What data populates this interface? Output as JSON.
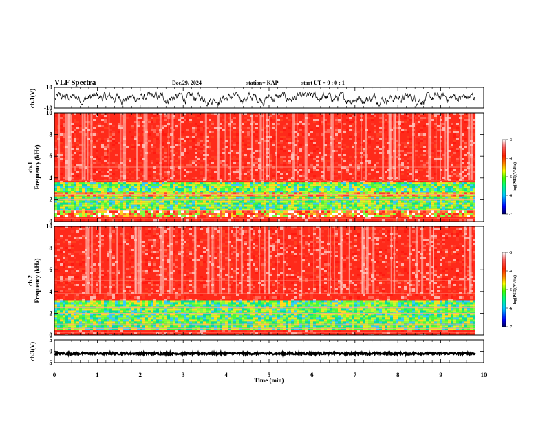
{
  "header": {
    "title": "VLF Spectra",
    "date": "Dec.29, 2024",
    "station": "station= KAP",
    "start": "start  UT  =   9 : 0  : 1"
  },
  "colors": {
    "background": "#ffffff",
    "trace": "#000000",
    "spectrogram_base": "#ff2a1a",
    "colormap": [
      "#000060",
      "#0000ff",
      "#00c8ff",
      "#00ff80",
      "#40ff00",
      "#ffff00",
      "#ff8000",
      "#ff2000",
      "#ff6060",
      "#ffffff"
    ]
  },
  "chart_data": [
    {
      "type": "line",
      "name": "ch1-waveform",
      "ylabel": "ch.1(V)",
      "ylim": [
        -10,
        10
      ],
      "y_ticks": [
        "10",
        "-10"
      ],
      "xlim": [
        0,
        10
      ],
      "description_visible": "noisy voltage trace fluctuating roughly between -8 and 5 V"
    },
    {
      "type": "heatmap",
      "name": "ch1-spectrogram",
      "ylabel": "Frequency  (kHz)",
      "ylabel_prefix": "ch.1",
      "ylim": [
        0,
        10
      ],
      "y_ticks": [
        "0",
        "2",
        "4",
        "6",
        "8",
        "10"
      ],
      "xlim": [
        0,
        9.8
      ],
      "colorbar": {
        "label": "log(PSD)(V²/Hz)",
        "range": [
          -7,
          -3
        ],
        "ticks": [
          "-3",
          "-4",
          "-5",
          "-6",
          "-7"
        ]
      },
      "bands_khz": [
        {
          "from": 0.0,
          "to": 0.4,
          "level": "high"
        },
        {
          "from": 0.4,
          "to": 1.0,
          "level": "mixed"
        },
        {
          "from": 1.0,
          "to": 2.3,
          "level": "low"
        },
        {
          "from": 2.3,
          "to": 2.7,
          "level": "mid"
        },
        {
          "from": 2.7,
          "to": 3.6,
          "level": "low"
        },
        {
          "from": 3.6,
          "to": 10.0,
          "level": "high"
        }
      ]
    },
    {
      "type": "heatmap",
      "name": "ch2-spectrogram",
      "ylabel": "Frequency  (kHz)",
      "ylabel_prefix": "ch.2",
      "ylim": [
        0,
        10
      ],
      "y_ticks": [
        "0",
        "2",
        "4",
        "6",
        "8",
        "10"
      ],
      "xlim": [
        0,
        9.8
      ],
      "colorbar": {
        "label": "log(PSD)(V²/Hz)",
        "range": [
          -7,
          -3
        ],
        "ticks": [
          "-3",
          "-4",
          "-5",
          "-6",
          "-7"
        ]
      },
      "bands_khz": [
        {
          "from": 0.0,
          "to": 0.5,
          "level": "high"
        },
        {
          "from": 0.5,
          "to": 2.0,
          "level": "low"
        },
        {
          "from": 2.0,
          "to": 3.2,
          "level": "low"
        },
        {
          "from": 3.2,
          "to": 10.0,
          "level": "high"
        }
      ]
    },
    {
      "type": "line",
      "name": "ch3-waveform",
      "ylabel": "ch.3(V)",
      "ylim": [
        -5,
        5
      ],
      "y_ticks": [
        "5",
        "0",
        "-5"
      ],
      "xlim": [
        0,
        10
      ],
      "level_v": -1.0
    }
  ],
  "x_axis": {
    "label": "Time  (min)",
    "ticks": [
      "0",
      "1",
      "2",
      "3",
      "4",
      "5",
      "6",
      "7",
      "8",
      "9",
      "10"
    ],
    "range": [
      0,
      10
    ]
  }
}
